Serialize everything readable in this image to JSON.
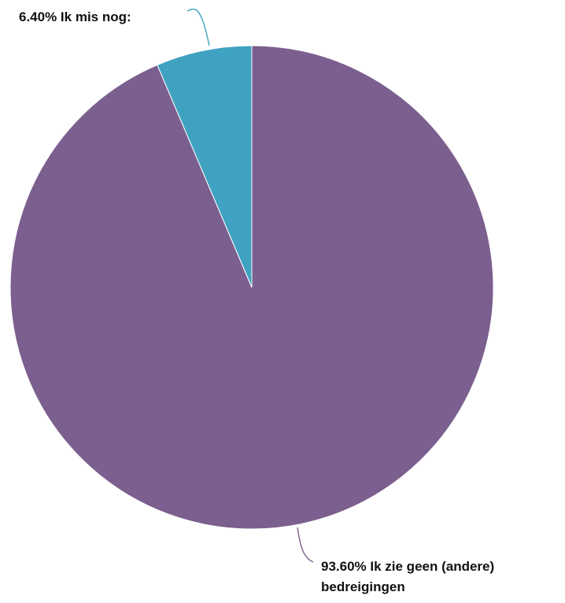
{
  "chart_data": {
    "type": "pie",
    "start": "12 o'clock",
    "direction": "clockwise",
    "slices": [
      {
        "label": "Ik zie geen (andere) bedreigingen",
        "label_lines": [
          "93.60% Ik zie geen (andere)",
          "bedreigingen"
        ],
        "value": 93.6,
        "color": "#7B5F8E"
      },
      {
        "label": "Ik mis nog:",
        "label_lines": [
          "6.40% Ik mis nog:"
        ],
        "value": 6.4,
        "color": "#3FA2C0"
      }
    ]
  }
}
